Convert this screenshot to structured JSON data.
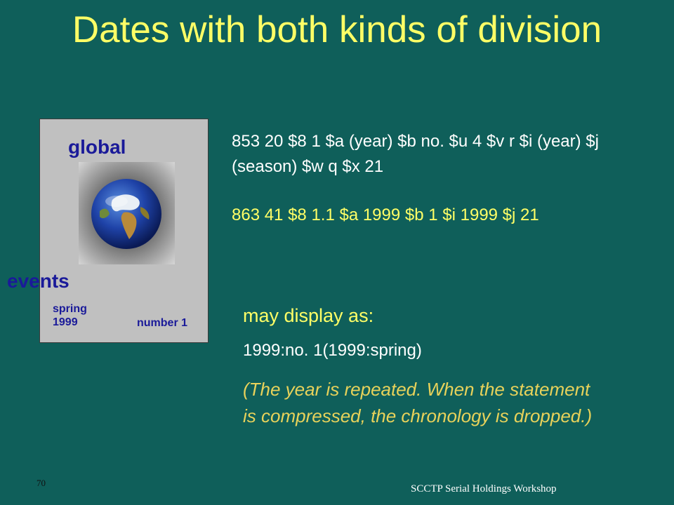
{
  "slide": {
    "title": "Dates with both kinds of division",
    "cover": {
      "label_top": "global",
      "label_events": "events",
      "issue_season": "spring",
      "issue_year": "1999",
      "issue_number": "number 1",
      "image_icon": "globe-icon"
    },
    "field_853": "853 20   $8 1 $a (year) $b no. $u 4 $v r $i (year) $j (season) $w q $x 21",
    "field_863": "863 41  $8 1.1 $a 1999 $b 1 $i 1999 $j 21",
    "display_intro": "may display as:",
    "display_value": "1999:no. 1(1999:spring)",
    "note": "(The year is repeated.  When the statement is compressed, the chronology is dropped.)",
    "page_number": "70",
    "footer": "SCCTP Serial Holdings Workshop"
  },
  "colors": {
    "background": "#0f5f5a",
    "title": "#ffff66",
    "highlight": "#ffff66",
    "note": "#e8d25a",
    "cover_text": "#1a1a99",
    "cover_bg": "#c0c0c0"
  }
}
